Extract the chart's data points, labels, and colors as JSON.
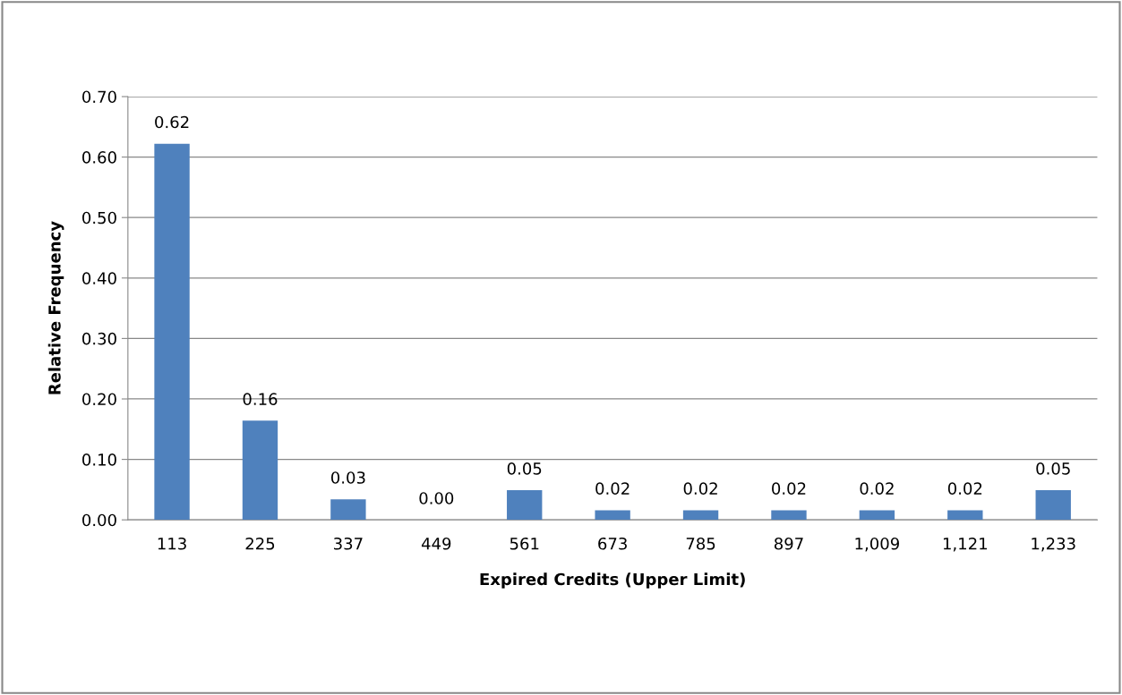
{
  "chart_data": {
    "type": "bar",
    "xlabel": "Expired Credits (Upper Limit)",
    "ylabel": "Relative Frequency",
    "categories": [
      "113",
      "225",
      "337",
      "449",
      "561",
      "673",
      "785",
      "897",
      "1,009",
      "1,121",
      "1,233"
    ],
    "values": [
      0.622,
      0.164,
      0.034,
      0.0,
      0.049,
      0.016,
      0.016,
      0.016,
      0.016,
      0.016,
      0.049
    ],
    "value_labels": [
      "0.62",
      "0.16",
      "0.03",
      "0.00",
      "0.05",
      "0.02",
      "0.02",
      "0.02",
      "0.02",
      "0.02",
      "0.05"
    ],
    "color": "#4f81bd",
    "ylim": [
      0,
      0.7
    ],
    "yticks": [
      {
        "value": 0,
        "label": "0.00"
      },
      {
        "value": 0.1,
        "label": "0.10"
      },
      {
        "value": 0.2,
        "label": "0.20"
      },
      {
        "value": 0.3,
        "label": "0.30"
      },
      {
        "value": 0.4,
        "label": "0.40"
      },
      {
        "value": 0.5,
        "label": "0.50"
      },
      {
        "value": 0.6,
        "label": "0.60"
      },
      {
        "value": 0.7,
        "label": "0.70"
      }
    ],
    "grid": "y"
  }
}
